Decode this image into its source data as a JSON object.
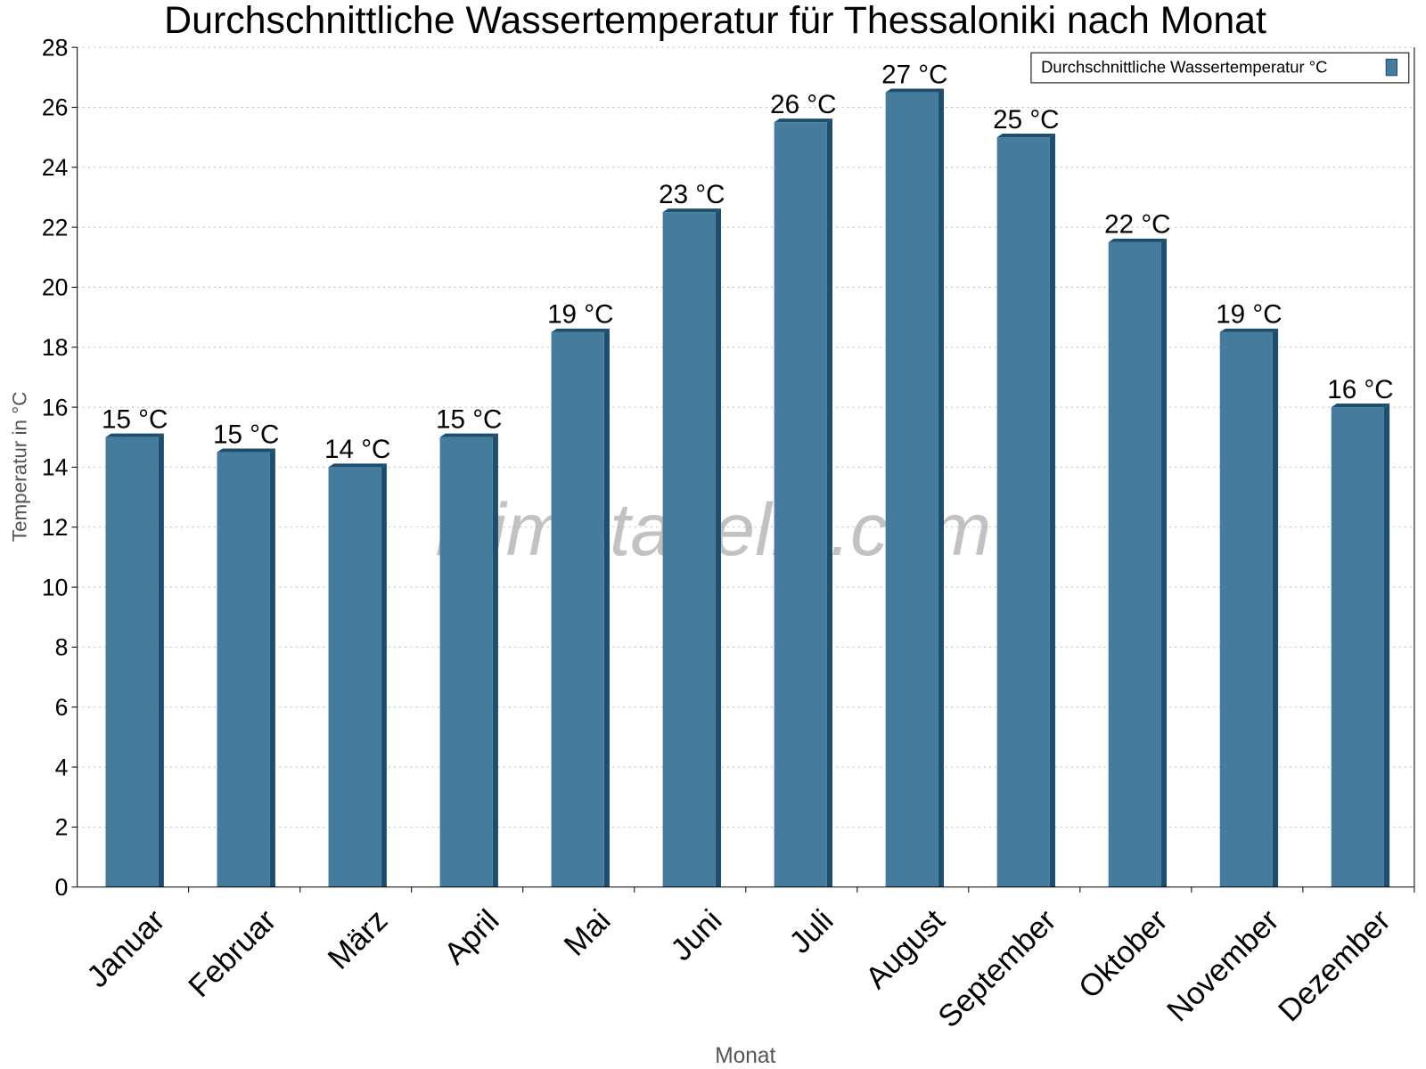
{
  "chart_data": {
    "type": "bar",
    "title": "Durchschnittliche Wassertemperatur für Thessaloniki nach Monat",
    "xlabel": "Monat",
    "ylabel": "Temperatur in °C",
    "ylim": [
      0,
      28
    ],
    "yticks": [
      0,
      2,
      4,
      6,
      8,
      10,
      12,
      14,
      16,
      18,
      20,
      22,
      24,
      26,
      28
    ],
    "grid": true,
    "legend": {
      "position": "top-right",
      "entries": [
        "Durchschnittliche Wassertemperatur °C"
      ]
    },
    "categories": [
      "Januar",
      "Februar",
      "März",
      "April",
      "Mai",
      "Juni",
      "Juli",
      "August",
      "September",
      "Oktober",
      "November",
      "Dezember"
    ],
    "series": [
      {
        "name": "Durchschnittliche Wassertemperatur °C",
        "values": [
          15,
          14.5,
          14,
          15,
          18.5,
          22.5,
          25.5,
          26.5,
          25,
          21.5,
          18.5,
          16
        ],
        "labels": [
          "15 °C",
          "15 °C",
          "14 °C",
          "15 °C",
          "19 °C",
          "23 °C",
          "26 °C",
          "27 °C",
          "25 °C",
          "22 °C",
          "19 °C",
          "16 °C"
        ]
      }
    ],
    "colors": {
      "bar": "#457b9d",
      "bar_dark": "#1d4e6e"
    },
    "watermark": "klimatabelle.com"
  }
}
